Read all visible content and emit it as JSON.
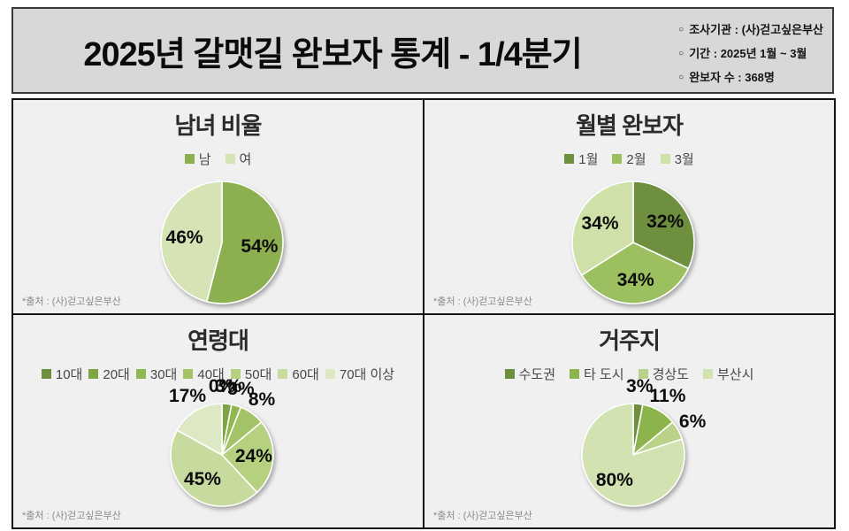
{
  "header": {
    "title": "2025년  갈맷길  완보자  통계 - 1/4분기",
    "info": [
      {
        "bullet": "○",
        "text": "조사기관 : (사)걷고싶은부산"
      },
      {
        "bullet": "○",
        "text": "기간 : 2025년 1월 ~ 3월"
      },
      {
        "bullet": "○",
        "text": "완보자 수 : 368명"
      }
    ]
  },
  "chart_data": [
    {
      "type": "pie",
      "title": "남녀 비율",
      "labels": [
        "남",
        "여"
      ],
      "values": [
        54,
        46
      ],
      "unit": "%",
      "colors": [
        "#8CB050",
        "#D6E4B5"
      ],
      "legend_position": "top",
      "start_angle_deg": 0,
      "direction": "clockwise",
      "label_outside_below": 0,
      "source": "*출처 : (사)걷고싶은부산"
    },
    {
      "type": "pie",
      "title": "월별 완보자",
      "labels": [
        "1월",
        "2월",
        "3월"
      ],
      "values": [
        32,
        34,
        34
      ],
      "unit": "%",
      "colors": [
        "#6E8F3D",
        "#9CC060",
        "#CFE0A9"
      ],
      "legend_position": "top",
      "start_angle_deg": 0,
      "direction": "clockwise",
      "label_outside_below": 0,
      "source": "*출처 : (사)걷고싶은부산"
    },
    {
      "type": "pie",
      "title": "연령대",
      "labels": [
        "10대",
        "20대",
        "30대",
        "40대",
        "50대",
        "60대",
        "70대 이상"
      ],
      "values": [
        0,
        3,
        3,
        8,
        24,
        45,
        17
      ],
      "unit": "%",
      "colors": [
        "#6E8F3D",
        "#7FA446",
        "#90B852",
        "#A3C367",
        "#B5D07F",
        "#C8DB9E",
        "#DCE9C4"
      ],
      "legend_position": "top",
      "start_angle_deg": 0,
      "direction": "clockwise",
      "label_outside_below": 20,
      "source": "*출처 : (사)걷고싶은부산"
    },
    {
      "type": "pie",
      "title": "거주지",
      "labels": [
        "수도권",
        "타 도시",
        "경상도",
        "부산시"
      ],
      "values": [
        3,
        11,
        6,
        80
      ],
      "unit": "%",
      "colors": [
        "#6E8F3D",
        "#8DB44C",
        "#B9D189",
        "#D3E2B1"
      ],
      "legend_position": "top",
      "start_angle_deg": 0,
      "direction": "clockwise",
      "label_outside_below": 12,
      "source": "*출처 : (사)걷고싶은부산"
    }
  ]
}
